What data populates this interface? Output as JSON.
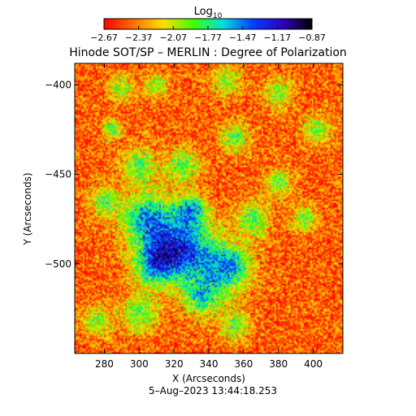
{
  "chart_data": {
    "type": "heatmap",
    "title": "Hinode SOT/SP – MERLIN : Degree of Polarization",
    "xlabel": "X (Arcseconds)",
    "ylabel": "Y (Arcseconds)",
    "footer": "5–Aug–2023 13:44:18.253",
    "xlim": [
      263,
      417
    ],
    "ylim": [
      -550,
      -388
    ],
    "x_ticks": [
      280,
      300,
      320,
      340,
      360,
      380,
      400
    ],
    "y_ticks": [
      -400,
      -450,
      -500
    ],
    "x_tick_labels": [
      "280",
      "300",
      "320",
      "340",
      "360",
      "380",
      "400"
    ],
    "y_tick_labels": [
      "−400",
      "−450",
      "−500"
    ],
    "colorbar": {
      "label_base": "Log",
      "label_sub": "10",
      "range": [
        -2.67,
        -0.87
      ],
      "ticks": [
        -2.67,
        -2.37,
        -2.07,
        -1.77,
        -1.47,
        -1.17,
        -0.87
      ],
      "tick_labels": [
        "−2.67",
        "−2.37",
        "−2.07",
        "−1.77",
        "−1.47",
        "−1.17",
        "−0.87"
      ],
      "colors": [
        "#ff0000",
        "#ff7000",
        "#ffe000",
        "#40ff00",
        "#00e0e0",
        "#0040ff",
        "#3000c0",
        "#000000"
      ]
    },
    "regions": [
      {
        "x": 290,
        "y": -402,
        "r": 7,
        "v": -1.95
      },
      {
        "x": 310,
        "y": -400,
        "r": 6,
        "v": -1.95
      },
      {
        "x": 350,
        "y": -398,
        "r": 8,
        "v": -1.95
      },
      {
        "x": 380,
        "y": -405,
        "r": 8,
        "v": -1.95
      },
      {
        "x": 402,
        "y": -425,
        "r": 8,
        "v": -1.95
      },
      {
        "x": 355,
        "y": -430,
        "r": 8,
        "v": -1.9
      },
      {
        "x": 325,
        "y": -445,
        "r": 9,
        "v": -1.85
      },
      {
        "x": 300,
        "y": -445,
        "r": 9,
        "v": -1.85
      },
      {
        "x": 280,
        "y": -465,
        "r": 8,
        "v": -1.9
      },
      {
        "x": 305,
        "y": -475,
        "r": 14,
        "v": -1.55
      },
      {
        "x": 325,
        "y": -490,
        "r": 16,
        "v": -1.5
      },
      {
        "x": 310,
        "y": -500,
        "r": 12,
        "v": -1.55
      },
      {
        "x": 345,
        "y": -505,
        "r": 16,
        "v": -1.75
      },
      {
        "x": 355,
        "y": -500,
        "r": 9,
        "v": -2.05
      },
      {
        "x": 365,
        "y": -475,
        "r": 9,
        "v": -1.85
      },
      {
        "x": 380,
        "y": -455,
        "r": 7,
        "v": -1.9
      },
      {
        "x": 395,
        "y": -475,
        "r": 7,
        "v": -1.95
      },
      {
        "x": 335,
        "y": -520,
        "r": 9,
        "v": -1.9
      },
      {
        "x": 300,
        "y": -528,
        "r": 10,
        "v": -1.9
      },
      {
        "x": 275,
        "y": -532,
        "r": 8,
        "v": -1.95
      },
      {
        "x": 355,
        "y": -535,
        "r": 8,
        "v": -1.95
      },
      {
        "x": 330,
        "y": -470,
        "r": 8,
        "v": -1.7
      },
      {
        "x": 285,
        "y": -425,
        "r": 5,
        "v": -1.85
      }
    ]
  }
}
